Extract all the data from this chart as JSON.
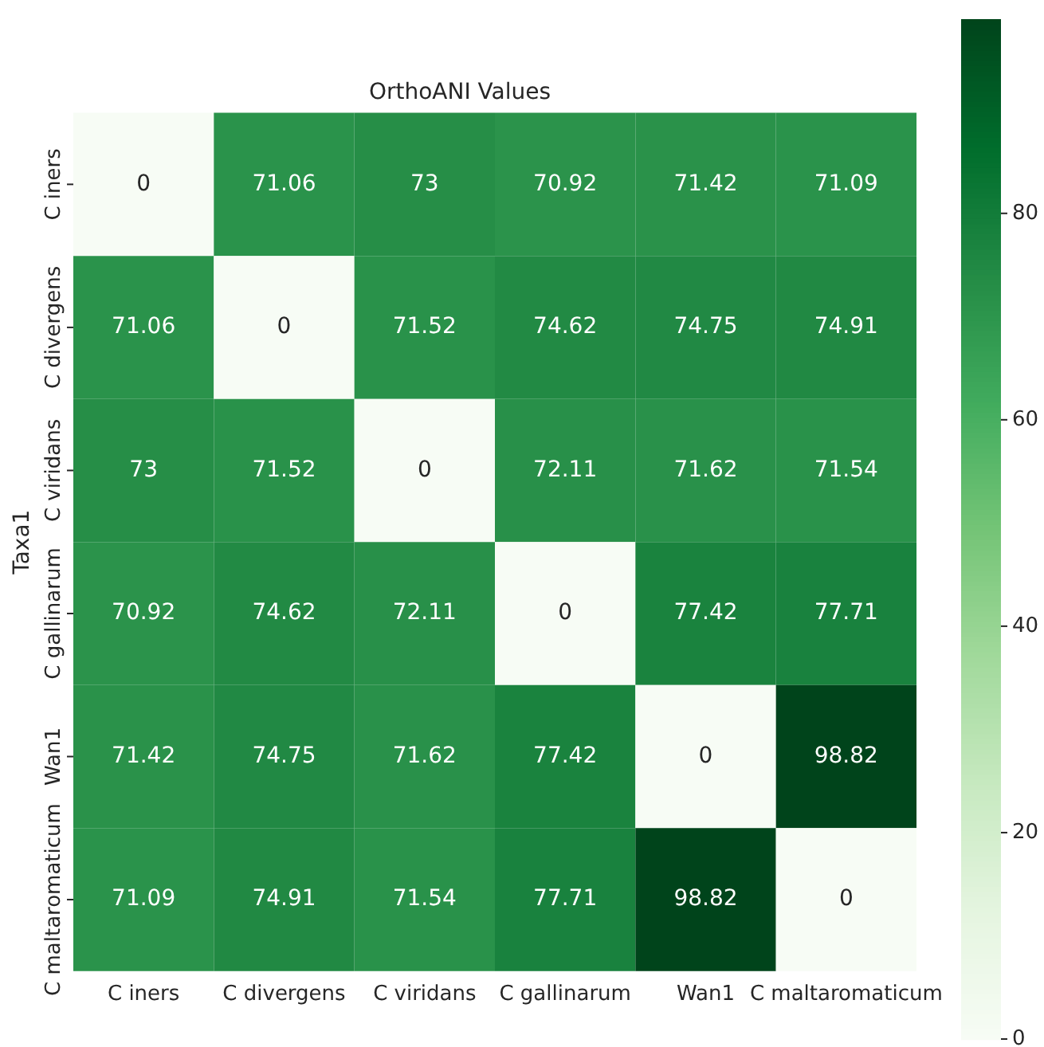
{
  "chart_data": {
    "type": "heatmap",
    "title": "OrthoANI Values",
    "ylabel": "Taxa1",
    "categories": [
      "C iners",
      "C divergens",
      "C viridans",
      "C gallinarum",
      "Wan1",
      "C maltaromaticum"
    ],
    "y_categories": [
      "C iners",
      "C divergens",
      "C viridans",
      "C gallinarum",
      "Wan1",
      "C maltaromaticum"
    ],
    "cells": [
      [
        0,
        71.06,
        73,
        70.92,
        71.42,
        71.09
      ],
      [
        71.06,
        0,
        71.52,
        74.62,
        74.75,
        74.91
      ],
      [
        73,
        71.52,
        0,
        72.11,
        71.62,
        71.54
      ],
      [
        70.92,
        74.62,
        72.11,
        0,
        77.42,
        77.71
      ],
      [
        71.42,
        74.75,
        71.62,
        77.42,
        0,
        98.82
      ],
      [
        71.09,
        74.91,
        71.54,
        77.71,
        98.82,
        0
      ]
    ],
    "data_labels": true,
    "grid": false,
    "legend": false,
    "clim": [
      0,
      98.82
    ],
    "cticks": [
      0,
      20,
      40,
      60,
      80
    ]
  }
}
